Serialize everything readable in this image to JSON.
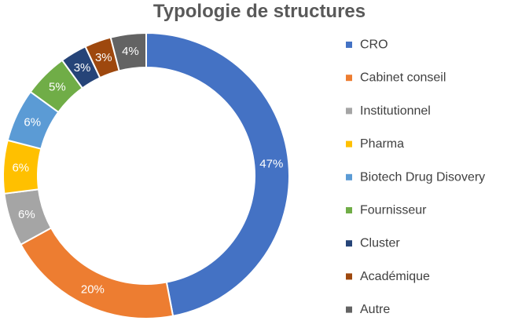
{
  "chart_data": {
    "type": "pie",
    "style": "donut",
    "title": "Typologie de structures",
    "legend_position": "right",
    "categories": [
      "CRO",
      "Cabinet conseil",
      "Institutionnel",
      "Pharma",
      "Biotech Drug Disovery",
      "Fournisseur",
      "Cluster",
      "Académique",
      "Autre"
    ],
    "values": [
      47,
      20,
      6,
      6,
      6,
      5,
      3,
      3,
      4
    ],
    "labels": [
      "47%",
      "20%",
      "6%",
      "6%",
      "6%",
      "5%",
      "3%",
      "3%",
      "4%"
    ],
    "colors": [
      "#4472C4",
      "#ED7D31",
      "#A5A5A5",
      "#FFC000",
      "#5B9BD5",
      "#70AD47",
      "#264478",
      "#9E480E",
      "#636363"
    ],
    "unit": "%"
  }
}
